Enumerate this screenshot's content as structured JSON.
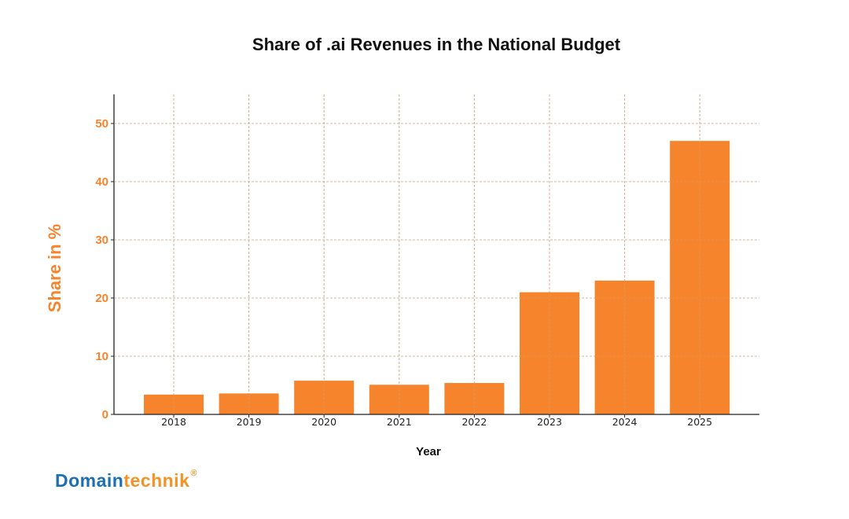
{
  "chart_data": {
    "type": "bar",
    "title": "Share of .ai Revenues in the National Budget",
    "xlabel": "Year",
    "ylabel": "Share in %",
    "categories": [
      "2018",
      "2019",
      "2020",
      "2021",
      "2022",
      "2023",
      "2024",
      "2025"
    ],
    "values": [
      3.4,
      3.6,
      5.8,
      5.1,
      5.4,
      21,
      23,
      47
    ],
    "ylim": [
      0,
      55
    ],
    "yticks": [
      0,
      10,
      20,
      30,
      40,
      50
    ],
    "ytick_labels": [
      "0",
      "10",
      "20",
      "30",
      "40",
      "50"
    ],
    "grid": true,
    "legend": null,
    "colors": {
      "bar": "#f5842c",
      "axis_label_accent": "#f5842c",
      "grid": "#cccccc",
      "axis": "#222222"
    }
  },
  "branding": {
    "logo_part1": "Domain",
    "logo_part2": "technik",
    "logo_mark": "®"
  }
}
